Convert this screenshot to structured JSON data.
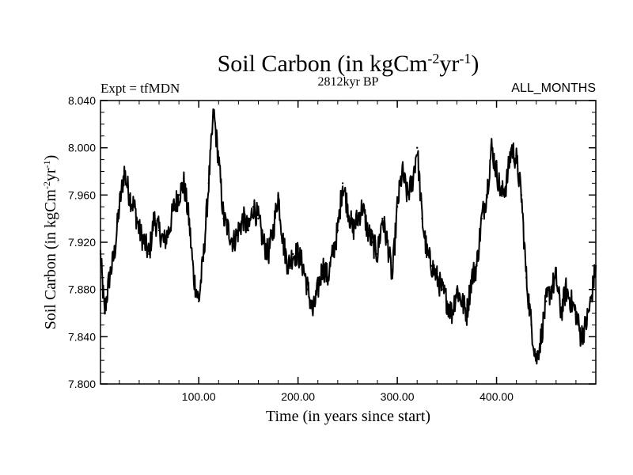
{
  "chart_data": {
    "type": "line",
    "title": {
      "main": "Soil Carbon (in kgCm",
      "sup1": "-2",
      "mid": "yr",
      "sup2": "-1",
      "end": ")"
    },
    "subtitle_left": "Expt = tfMDN",
    "subtitle_center": "2812kyr BP",
    "subtitle_right": "ALL_MONTHS",
    "xlabel": "Time (in years since start)",
    "ylabel": {
      "main": "Soil Carbon (in kgCm",
      "sup1": "-2",
      "mid": "yr",
      "sup2": "-1",
      "end": ")"
    },
    "xlim": [
      1,
      500
    ],
    "ylim": [
      7.8,
      8.04
    ],
    "xticks": [
      100,
      200,
      300,
      400
    ],
    "xtick_labels": [
      "100.00",
      "200.00",
      "300.00",
      "400.00"
    ],
    "yticks": [
      7.8,
      7.84,
      7.88,
      7.92,
      7.96,
      8.0,
      8.04
    ],
    "ytick_labels": [
      "7.800",
      "7.840",
      "7.880",
      "7.920",
      "7.960",
      "8.000",
      "8.040"
    ],
    "series": [
      {
        "name": "Soil Carbon",
        "x": [
          1,
          5,
          10,
          15,
          20,
          25,
          30,
          35,
          40,
          45,
          50,
          55,
          60,
          65,
          70,
          75,
          80,
          85,
          90,
          95,
          100,
          105,
          110,
          115,
          120,
          125,
          130,
          135,
          140,
          145,
          150,
          155,
          160,
          165,
          170,
          175,
          180,
          185,
          190,
          195,
          200,
          205,
          210,
          215,
          220,
          225,
          230,
          235,
          240,
          245,
          250,
          255,
          260,
          265,
          270,
          275,
          280,
          285,
          290,
          295,
          300,
          305,
          310,
          315,
          320,
          325,
          330,
          335,
          340,
          345,
          350,
          355,
          360,
          365,
          370,
          375,
          380,
          385,
          390,
          395,
          400,
          405,
          410,
          415,
          420,
          425,
          430,
          435,
          440,
          445,
          450,
          455,
          460,
          465,
          470,
          475,
          480,
          485,
          490,
          495,
          500
        ],
        "y": [
          7.91,
          7.86,
          7.89,
          7.91,
          7.95,
          7.98,
          7.96,
          7.95,
          7.93,
          7.92,
          7.91,
          7.94,
          7.93,
          7.92,
          7.93,
          7.95,
          7.96,
          7.97,
          7.94,
          7.89,
          7.87,
          7.91,
          7.97,
          8.03,
          7.99,
          7.94,
          7.93,
          7.92,
          7.93,
          7.94,
          7.93,
          7.95,
          7.94,
          7.92,
          7.91,
          7.93,
          7.96,
          7.92,
          7.9,
          7.91,
          7.91,
          7.9,
          7.88,
          7.86,
          7.88,
          7.9,
          7.89,
          7.91,
          7.93,
          7.97,
          7.95,
          7.93,
          7.94,
          7.95,
          7.93,
          7.92,
          7.91,
          7.94,
          7.92,
          7.89,
          7.95,
          7.98,
          7.96,
          7.97,
          8.0,
          7.94,
          7.91,
          7.9,
          7.89,
          7.88,
          7.87,
          7.86,
          7.88,
          7.87,
          7.86,
          7.89,
          7.9,
          7.94,
          7.96,
          8.0,
          7.98,
          7.96,
          7.97,
          8.0,
          7.99,
          7.96,
          7.89,
          7.85,
          7.82,
          7.84,
          7.87,
          7.88,
          7.89,
          7.86,
          7.88,
          7.87,
          7.86,
          7.84,
          7.85,
          7.87,
          7.9
        ]
      }
    ]
  }
}
